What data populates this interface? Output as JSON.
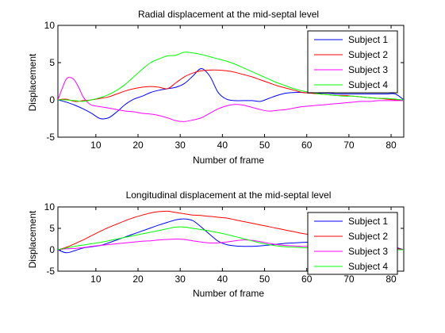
{
  "chart_data": [
    {
      "type": "line",
      "title": "Radial displacement at the mid-septal level",
      "xlabel": "Number of frame",
      "ylabel": "Displacement",
      "xlim": [
        1,
        83
      ],
      "ylim": [
        -5,
        10
      ],
      "xticks": [
        10,
        20,
        30,
        40,
        50,
        60,
        70,
        80
      ],
      "yticks": [
        -5,
        0,
        5,
        10
      ],
      "grid": false,
      "legend_position": "top-right",
      "series": [
        {
          "name": "Subject 1",
          "color": "#0000ff",
          "x": [
            1,
            3,
            5,
            7,
            9,
            11,
            13,
            15,
            17,
            19,
            21,
            23,
            25,
            27,
            29,
            31,
            33,
            35,
            37,
            39,
            41,
            43,
            45,
            47,
            49,
            51,
            53,
            55,
            57,
            59,
            61,
            63,
            65,
            67,
            69,
            71,
            73,
            75,
            77,
            79,
            81,
            83
          ],
          "y": [
            0,
            -0.3,
            -0.7,
            -1.2,
            -1.8,
            -2.5,
            -2.4,
            -1.6,
            -0.6,
            0.1,
            0.5,
            1,
            1.3,
            1.5,
            1.7,
            2.2,
            3.2,
            4.2,
            3.2,
            1,
            0.1,
            -0.1,
            -0.1,
            -0.1,
            -0.2,
            0.2,
            0.6,
            0.9,
            1,
            1,
            0.9,
            0.9,
            0.9,
            0.8,
            0.8,
            0.8,
            0.8,
            0.8,
            0.8,
            0.8,
            0.8,
            0
          ]
        },
        {
          "name": "Subject 2",
          "color": "#ff0000",
          "x": [
            1,
            3,
            5,
            7,
            9,
            11,
            13,
            15,
            17,
            19,
            21,
            23,
            25,
            27,
            29,
            31,
            33,
            35,
            37,
            39,
            41,
            43,
            45,
            47,
            49,
            51,
            53,
            55,
            57,
            59,
            61,
            63,
            65,
            67,
            69,
            71,
            73,
            75,
            77,
            79,
            81,
            83
          ],
          "y": [
            0,
            0.1,
            -0.2,
            -0.1,
            0,
            0.2,
            0.4,
            0.8,
            1.2,
            1.5,
            1.7,
            1.8,
            1.7,
            1.5,
            2.3,
            3.1,
            3.6,
            3.9,
            4,
            4,
            3.9,
            3.7,
            3.4,
            3.1,
            2.7,
            2.3,
            1.9,
            1.6,
            1.3,
            1,
            0.9,
            0.8,
            0.7,
            0.6,
            0.6,
            0.5,
            0.4,
            0.3,
            0.2,
            0.1,
            0,
            0
          ]
        },
        {
          "name": "Subject 3",
          "color": "#ff00ff",
          "x": [
            1,
            2,
            3,
            4,
            5,
            6,
            7,
            8,
            9,
            11,
            13,
            15,
            17,
            19,
            21,
            23,
            25,
            27,
            29,
            31,
            33,
            35,
            37,
            39,
            41,
            43,
            45,
            47,
            49,
            51,
            53,
            55,
            57,
            59,
            61,
            63,
            65,
            67,
            69,
            71,
            73,
            75,
            77,
            79,
            81,
            83
          ],
          "y": [
            0,
            1.5,
            2.8,
            3,
            2.6,
            1.6,
            0.4,
            -0.3,
            -0.7,
            -0.9,
            -1.1,
            -1.3,
            -1.5,
            -1.6,
            -1.8,
            -1.9,
            -2.1,
            -2.4,
            -2.8,
            -2.9,
            -2.7,
            -2.4,
            -1.8,
            -1.2,
            -0.8,
            -0.6,
            -0.7,
            -1,
            -1.3,
            -1.5,
            -1.4,
            -1.3,
            -1.1,
            -0.9,
            -0.8,
            -0.7,
            -0.6,
            -0.5,
            -0.4,
            -0.3,
            -0.2,
            -0.2,
            -0.1,
            -0.1,
            -0.1,
            -0.1
          ]
        },
        {
          "name": "Subject 4",
          "color": "#00ff00",
          "x": [
            1,
            3,
            5,
            7,
            9,
            11,
            13,
            15,
            17,
            19,
            21,
            23,
            25,
            27,
            29,
            31,
            33,
            35,
            37,
            39,
            41,
            43,
            45,
            47,
            49,
            51,
            53,
            55,
            57,
            59,
            61,
            63,
            65,
            67,
            69,
            71,
            73,
            75,
            77,
            79,
            81,
            83
          ],
          "y": [
            0,
            0,
            -0.1,
            -0.2,
            0,
            0.3,
            0.7,
            1.3,
            2.1,
            3.1,
            4.1,
            5,
            5.5,
            5.9,
            6,
            6.4,
            6.3,
            6.1,
            5.8,
            5.5,
            5.2,
            4.8,
            4.3,
            3.8,
            3.3,
            2.8,
            2.3,
            1.9,
            1.5,
            1.2,
            1,
            0.8,
            0.7,
            0.6,
            0.5,
            0.5,
            0.4,
            0.3,
            0.2,
            0.2,
            0.1,
            0
          ]
        }
      ]
    },
    {
      "type": "line",
      "title": "Longitudinal displacement at the mid-septal level",
      "xlabel": "Number of frame",
      "ylabel": "Displacement",
      "xlim": [
        1,
        83
      ],
      "ylim": [
        -5,
        10
      ],
      "xticks": [
        10,
        20,
        30,
        40,
        50,
        60,
        70,
        80
      ],
      "yticks": [
        -5,
        0,
        5,
        10
      ],
      "grid": false,
      "legend_position": "right",
      "series": [
        {
          "name": "Subject 1",
          "color": "#0000ff",
          "x": [
            1,
            3,
            5,
            7,
            9,
            11,
            13,
            15,
            17,
            19,
            21,
            23,
            25,
            27,
            29,
            31,
            33,
            35,
            37,
            39,
            41,
            43,
            45,
            47,
            49,
            51,
            53,
            55,
            57,
            59,
            61,
            63,
            65,
            67,
            69,
            71,
            73,
            75,
            77,
            79,
            81,
            83
          ],
          "y": [
            0,
            -0.7,
            -0.2,
            0.4,
            0.7,
            1,
            1.6,
            2.3,
            3,
            3.7,
            4.4,
            5.1,
            5.8,
            6.4,
            7,
            7.2,
            6.8,
            5.3,
            3.6,
            2,
            1.2,
            0.9,
            0.8,
            0.8,
            0.9,
            1.1,
            1.3,
            1.5,
            1.6,
            1.7,
            1.8,
            1.8,
            1.8,
            1.8,
            1.7,
            1.6,
            1.5,
            1.3,
            1.1,
            0.9,
            0.6,
            0
          ]
        },
        {
          "name": "Subject 2",
          "color": "#ff0000",
          "x": [
            1,
            3,
            5,
            7,
            9,
            11,
            13,
            15,
            17,
            19,
            21,
            23,
            25,
            27,
            29,
            31,
            33,
            35,
            37,
            39,
            41,
            43,
            45,
            47,
            49,
            51,
            53,
            55,
            57,
            59,
            61,
            63,
            65,
            67,
            69,
            71,
            73,
            75,
            77,
            79,
            81,
            83
          ],
          "y": [
            0,
            0.6,
            1.4,
            2.3,
            3.3,
            4.3,
            5.2,
            6,
            6.8,
            7.5,
            8.1,
            8.6,
            8.9,
            9,
            8.7,
            8.4,
            8.1,
            8,
            7.8,
            7.6,
            7.4,
            7,
            6.6,
            6.2,
            5.8,
            5.4,
            5,
            4.6,
            4.2,
            3.8,
            3.5,
            3.2,
            3,
            2.7,
            2.4,
            2.1,
            1.8,
            1.5,
            1.1,
            0.8,
            0.4,
            0
          ]
        },
        {
          "name": "Subject 3",
          "color": "#ff00ff",
          "x": [
            1,
            3,
            5,
            7,
            9,
            11,
            13,
            15,
            17,
            19,
            21,
            23,
            25,
            27,
            29,
            31,
            33,
            35,
            37,
            39,
            41,
            43,
            45,
            47,
            49,
            51,
            53,
            55,
            57,
            59,
            61,
            63,
            65,
            67,
            69,
            71,
            73,
            75,
            77,
            79,
            81,
            83
          ],
          "y": [
            0,
            0.2,
            0.3,
            0.5,
            0.8,
            1,
            1.2,
            1.4,
            1.6,
            1.8,
            2,
            2.1,
            2.3,
            2.4,
            2.5,
            2.4,
            2.1,
            1.8,
            1.6,
            1.6,
            1.8,
            2.1,
            2.3,
            2.2,
            1.9,
            1.5,
            1.2,
            1,
            0.9,
            0.8,
            0.8,
            0.7,
            0.6,
            0.5,
            0.5,
            0.4,
            0.3,
            0.3,
            0.2,
            0.1,
            0.1,
            0
          ]
        },
        {
          "name": "Subject 4",
          "color": "#00ff00",
          "x": [
            1,
            3,
            5,
            7,
            9,
            11,
            13,
            15,
            17,
            19,
            21,
            23,
            25,
            27,
            29,
            31,
            33,
            35,
            37,
            39,
            41,
            43,
            45,
            47,
            49,
            51,
            53,
            55,
            57,
            59,
            61,
            63,
            65,
            67,
            69,
            71,
            73,
            75,
            77,
            79,
            81,
            83
          ],
          "y": [
            0,
            0.4,
            0.8,
            1.1,
            1.4,
            1.7,
            2.1,
            2.5,
            2.9,
            3.3,
            3.7,
            4.1,
            4.5,
            4.9,
            5.3,
            5.3,
            5,
            4.7,
            4.4,
            4,
            3.6,
            3.1,
            2.6,
            2.1,
            1.6,
            1.2,
            0.9,
            0.7,
            0.6,
            0.5,
            0.4,
            0.4,
            0.3,
            0.3,
            0.2,
            0.2,
            0.2,
            0.1,
            0.1,
            0.1,
            0,
            0
          ]
        }
      ]
    }
  ]
}
